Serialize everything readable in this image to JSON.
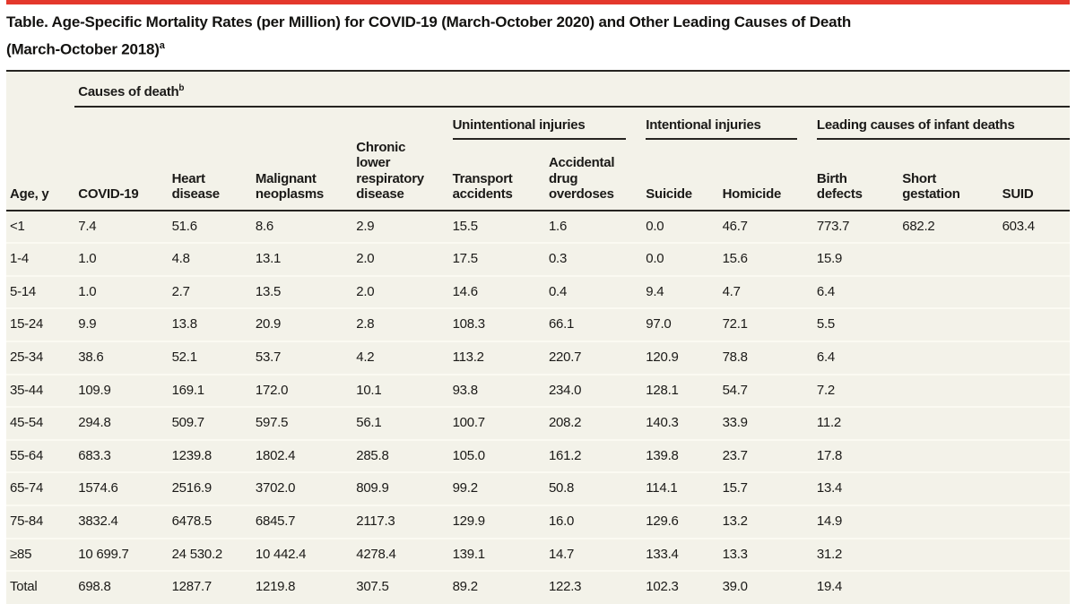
{
  "title": {
    "lines": [
      "Table. Age-Specific Mortality Rates (per Million) for COVID-19 (March-October 2020) and Other Leading Causes of Death",
      "(March-October 2018)"
    ],
    "superscript": "a"
  },
  "colors": {
    "accent_red": "#e4382c",
    "table_background": "#f3f2e9",
    "rule_black": "#262421"
  },
  "table": {
    "spanner": {
      "label": "Causes of death",
      "superscript": "b"
    },
    "row_header": "Age, y",
    "column_groups": [
      {
        "label": "Unintentional injuries",
        "span": 2
      },
      {
        "label": "Intentional injuries",
        "span": 2
      },
      {
        "label": "Leading causes of infant deaths",
        "span": 3
      }
    ],
    "columns": [
      "COVID-19",
      "Heart disease",
      "Malignant neoplasms",
      "Chronic lower respiratory disease",
      "Transport accidents",
      "Accidental drug overdoses",
      "Suicide",
      "Homicide",
      "Birth defects",
      "Short gestation",
      "SUID"
    ],
    "rows": [
      {
        "age": "<1",
        "values": [
          "7.4",
          "51.6",
          "8.6",
          "2.9",
          "15.5",
          "1.6",
          "0.0",
          "46.7",
          "773.7",
          "682.2",
          "603.4"
        ]
      },
      {
        "age": "1-4",
        "values": [
          "1.0",
          "4.8",
          "13.1",
          "2.0",
          "17.5",
          "0.3",
          "0.0",
          "15.6",
          "15.9",
          "",
          ""
        ]
      },
      {
        "age": "5-14",
        "values": [
          "1.0",
          "2.7",
          "13.5",
          "2.0",
          "14.6",
          "0.4",
          "9.4",
          "4.7",
          "6.4",
          "",
          ""
        ]
      },
      {
        "age": "15-24",
        "values": [
          "9.9",
          "13.8",
          "20.9",
          "2.8",
          "108.3",
          "66.1",
          "97.0",
          "72.1",
          "5.5",
          "",
          ""
        ]
      },
      {
        "age": "25-34",
        "values": [
          "38.6",
          "52.1",
          "53.7",
          "4.2",
          "113.2",
          "220.7",
          "120.9",
          "78.8",
          "6.4",
          "",
          ""
        ]
      },
      {
        "age": "35-44",
        "values": [
          "109.9",
          "169.1",
          "172.0",
          "10.1",
          "93.8",
          "234.0",
          "128.1",
          "54.7",
          "7.2",
          "",
          ""
        ]
      },
      {
        "age": "45-54",
        "values": [
          "294.8",
          "509.7",
          "597.5",
          "56.1",
          "100.7",
          "208.2",
          "140.3",
          "33.9",
          "11.2",
          "",
          ""
        ]
      },
      {
        "age": "55-64",
        "values": [
          "683.3",
          "1239.8",
          "1802.4",
          "285.8",
          "105.0",
          "161.2",
          "139.8",
          "23.7",
          "17.8",
          "",
          ""
        ]
      },
      {
        "age": "65-74",
        "values": [
          "1574.6",
          "2516.9",
          "3702.0",
          "809.9",
          "99.2",
          "50.8",
          "114.1",
          "15.7",
          "13.4",
          "",
          ""
        ]
      },
      {
        "age": "75-84",
        "values": [
          "3832.4",
          "6478.5",
          "6845.7",
          "2117.3",
          "129.9",
          "16.0",
          "129.6",
          "13.2",
          "14.9",
          "",
          ""
        ]
      },
      {
        "age": "≥85",
        "values": [
          "10 699.7",
          "24 530.2",
          "10 442.4",
          "4278.4",
          "139.1",
          "14.7",
          "133.4",
          "13.3",
          "31.2",
          "",
          ""
        ]
      },
      {
        "age": "Total",
        "values": [
          "698.8",
          "1287.7",
          "1219.8",
          "307.5",
          "89.2",
          "122.3",
          "102.3",
          "39.0",
          "19.4",
          "",
          ""
        ]
      }
    ]
  }
}
